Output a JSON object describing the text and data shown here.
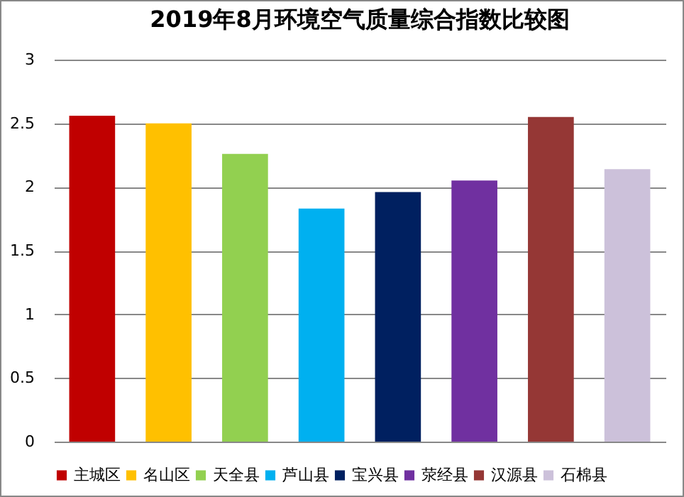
{
  "chart_data": {
    "type": "bar",
    "title": "2019年8月环境空气质量综合指数比较图",
    "categories": [
      null
    ],
    "series": [
      {
        "name": "主城区",
        "color": "#c00000",
        "values": [
          2.56
        ]
      },
      {
        "name": "名山区",
        "color": "#ffc000",
        "values": [
          2.5
        ]
      },
      {
        "name": "天全县",
        "color": "#92d050",
        "values": [
          2.26
        ]
      },
      {
        "name": "芦山县",
        "color": "#00b0f0",
        "values": [
          1.83
        ]
      },
      {
        "name": "宝兴县",
        "color": "#002060",
        "values": [
          1.96
        ]
      },
      {
        "name": "荥经县",
        "color": "#7030a0",
        "values": [
          2.05
        ]
      },
      {
        "name": "汉源县",
        "color": "#953735",
        "values": [
          2.55
        ]
      },
      {
        "name": "石棉县",
        "color": "#ccc1da",
        "values": [
          2.14
        ]
      }
    ],
    "ylim": [
      0,
      3
    ],
    "yticks": [
      0,
      0.5,
      1,
      1.5,
      2,
      2.5,
      3
    ],
    "grid": "y",
    "legend": "bottom"
  }
}
